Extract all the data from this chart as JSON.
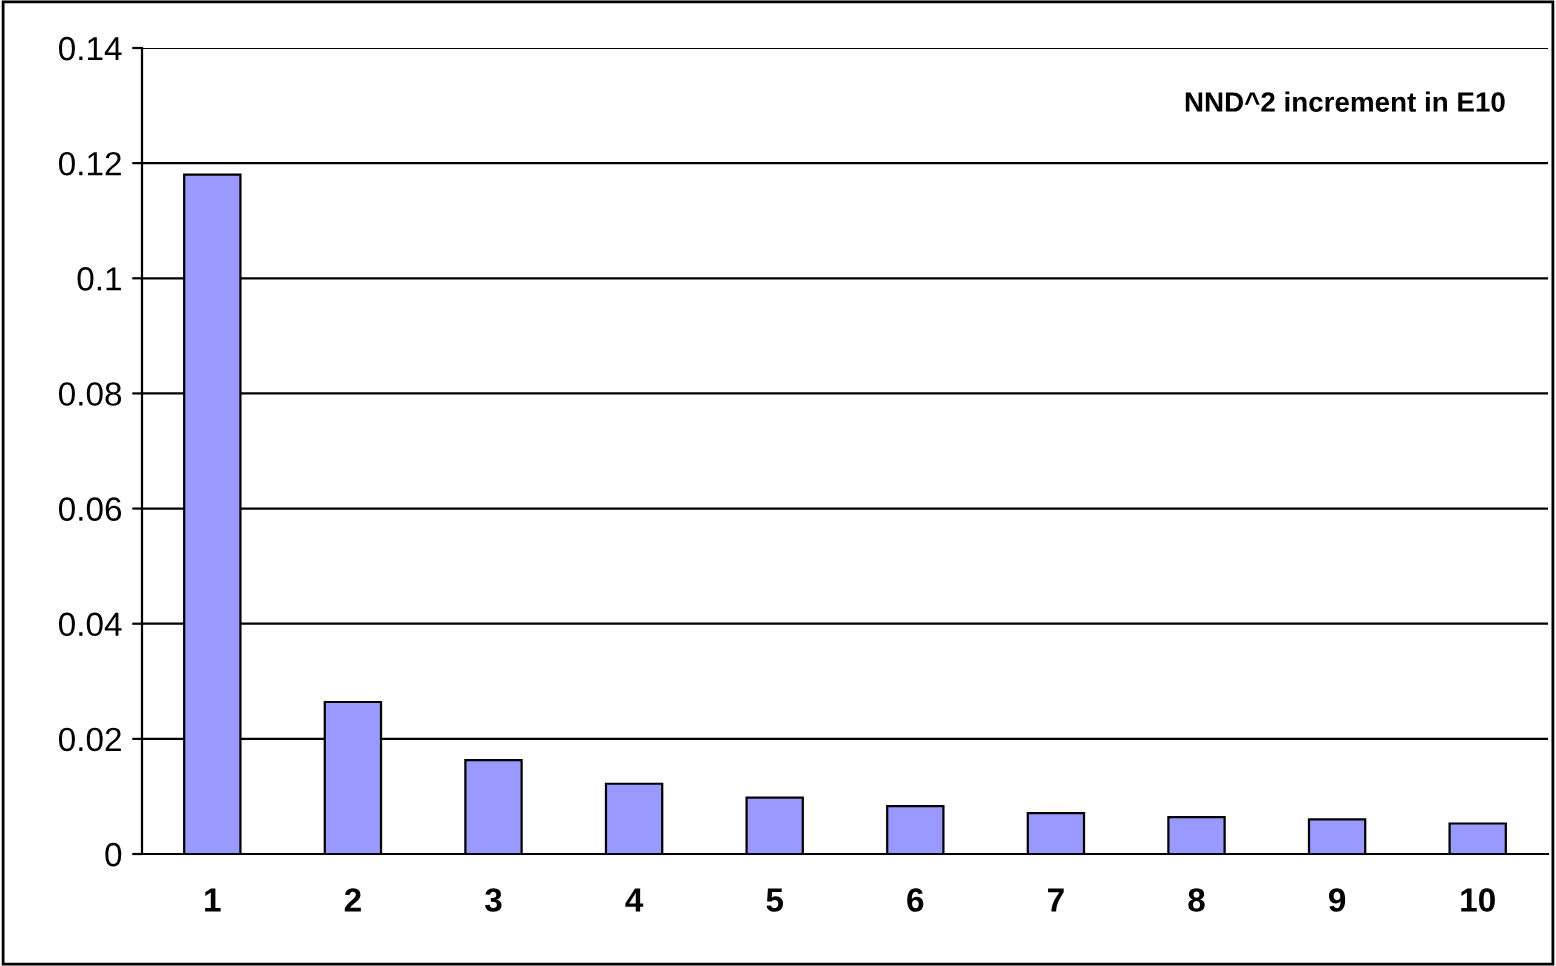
{
  "chart_data": {
    "type": "bar",
    "annotations": [
      "NND^2 increment in E10"
    ],
    "categories": [
      "1",
      "2",
      "3",
      "4",
      "5",
      "6",
      "7",
      "8",
      "9",
      "10"
    ],
    "values": [
      0.118,
      0.0264,
      0.0163,
      0.0122,
      0.0098,
      0.0083,
      0.0071,
      0.0064,
      0.006,
      0.0053
    ],
    "color": "#9999ff",
    "ylim": [
      0,
      0.14
    ],
    "yticks": [
      0,
      0.02,
      0.04,
      0.06,
      0.08,
      0.1,
      0.12,
      0.14
    ],
    "grid": "y",
    "legend": false
  }
}
